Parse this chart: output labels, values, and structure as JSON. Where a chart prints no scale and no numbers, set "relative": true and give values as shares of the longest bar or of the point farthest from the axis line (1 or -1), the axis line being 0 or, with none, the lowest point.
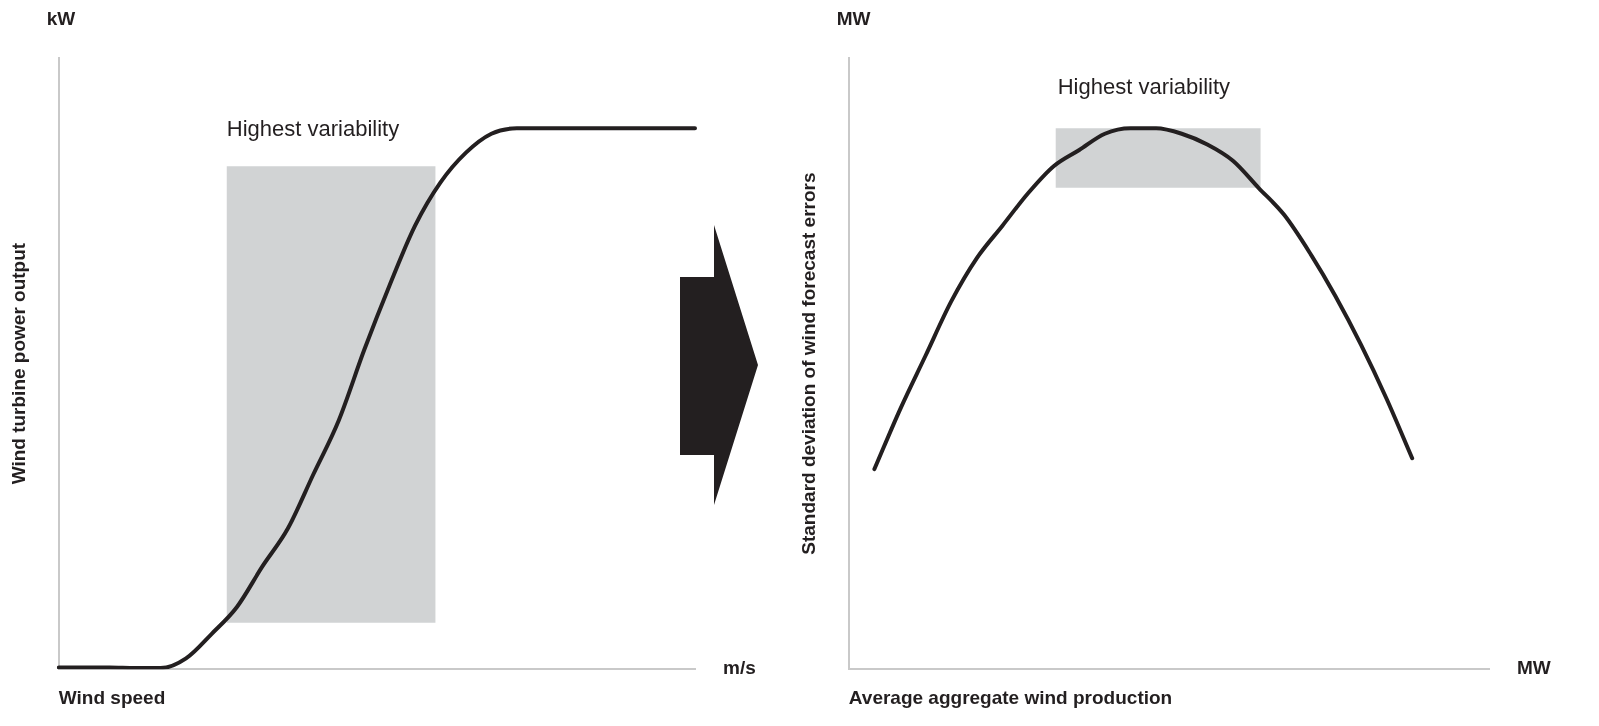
{
  "chart_data": [
    {
      "type": "line",
      "relative": true,
      "marker": "none",
      "xlabel": "Wind speed",
      "ylabel": "Wind turbine power output",
      "annotations": [
        "kW",
        "m/s"
      ],
      "bands": [
        {
          "axis": "y",
          "from": 0.086,
          "to": 0.93,
          "label": "Highest variability",
          "color": "#d1d3d4"
        }
      ],
      "categories": [
        null,
        null,
        null,
        null,
        null,
        null,
        null,
        null,
        null,
        null,
        null,
        null,
        null,
        null,
        null,
        null,
        null,
        null,
        null,
        null,
        null,
        null,
        null,
        null,
        null,
        null
      ],
      "series": [
        {
          "color": "#231f20",
          "values": [
            0.003,
            0.003,
            0.003,
            0.002,
            0.002,
            0.02,
            0.065,
            0.115,
            0.19,
            0.26,
            0.36,
            0.46,
            0.59,
            0.71,
            0.82,
            0.9,
            0.955,
            0.99,
            1,
            1,
            1,
            1,
            1,
            1,
            1,
            1
          ]
        }
      ]
    },
    {
      "type": "line",
      "relative": true,
      "marker": "none",
      "xlabel": "Average aggregate wind production",
      "ylabel": "Standard deviation of wind forecast errors",
      "annotations": [
        "MW",
        "MW"
      ],
      "bands": [
        {
          "axis": "y",
          "from": 0.89,
          "to": 1.0,
          "label": "Highest variability",
          "color": "#d1d3d4"
        }
      ],
      "categories": [
        null,
        null,
        null,
        null,
        null,
        null,
        null,
        null,
        null,
        null,
        null,
        null,
        null,
        null,
        null,
        null,
        null,
        null,
        null,
        null,
        null,
        null,
        null,
        null,
        null,
        null
      ],
      "series": [
        {
          "color": "#231f20",
          "values": [
            null,
            0.37,
            0.48,
            0.58,
            0.68,
            0.76,
            0.82,
            0.88,
            0.93,
            0.96,
            0.99,
            1,
            1,
            0.99,
            0.97,
            0.94,
            0.89,
            0.84,
            0.77,
            0.69,
            0.6,
            0.5,
            0.39,
            null,
            null,
            null
          ]
        }
      ]
    }
  ]
}
